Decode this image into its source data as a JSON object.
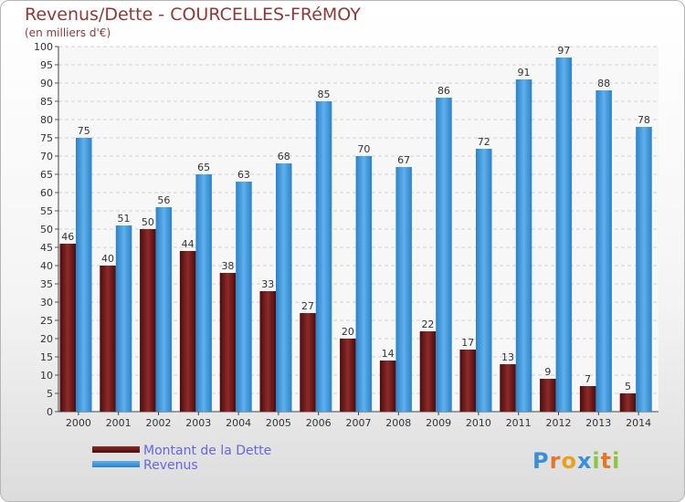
{
  "header": {
    "title": "Revenus/Dette - COURCELLES-FRéMOY",
    "subtitle": "(en milliers d'€)"
  },
  "chart_data": {
    "type": "bar",
    "title": "Revenus/Dette - COURCELLES-FRéMOY",
    "subtitle": "(en milliers d'€)",
    "categories": [
      "2000",
      "2001",
      "2002",
      "2003",
      "2004",
      "2005",
      "2006",
      "2007",
      "2008",
      "2009",
      "2010",
      "2011",
      "2012",
      "2013",
      "2014"
    ],
    "series": [
      {
        "name": "Montant de la Dette",
        "values": [
          46,
          40,
          50,
          44,
          38,
          33,
          27,
          20,
          14,
          22,
          17,
          13,
          9,
          7,
          5
        ],
        "color": "#7a1c1c"
      },
      {
        "name": "Revenus",
        "values": [
          75,
          51,
          56,
          65,
          63,
          68,
          85,
          70,
          67,
          86,
          72,
          91,
          97,
          88,
          78
        ],
        "color": "#3d9be0"
      }
    ],
    "ylim": [
      0,
      100
    ],
    "yticks": [
      0,
      5,
      10,
      15,
      20,
      25,
      30,
      35,
      40,
      45,
      50,
      55,
      60,
      65,
      70,
      75,
      80,
      85,
      90,
      95,
      100
    ],
    "grid": true,
    "legend_position": "bottom-left"
  },
  "legend": {
    "items": [
      {
        "label": "Montant de la Dette",
        "color": "#6b1616"
      },
      {
        "label": "Revenus",
        "color": "#3d9be0"
      }
    ]
  },
  "logo": {
    "letters": [
      "P",
      "r",
      "o",
      "x",
      "i",
      "t",
      "i"
    ],
    "colors": [
      "#3a8fd8",
      "#e07a2a",
      "#e8a020",
      "#3a8fd8",
      "#8cc63f",
      "#e07a2a",
      "#8cc63f"
    ]
  }
}
